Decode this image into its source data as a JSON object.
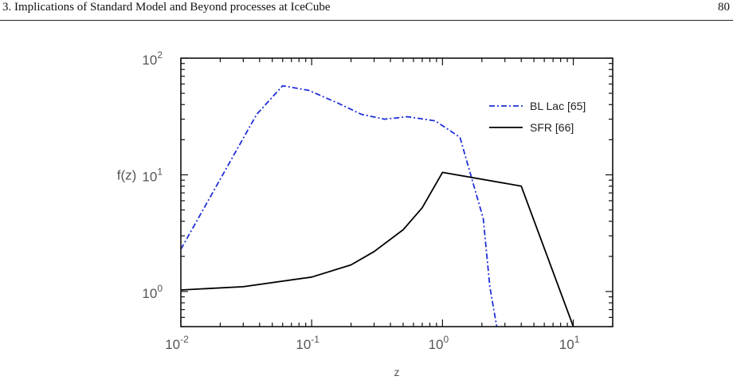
{
  "header": {
    "title": "3. Implications of Standard Model and Beyond processes at IceCube",
    "page_number": "80"
  },
  "colors": {
    "bl_lac": "#1f2fd8",
    "sfr": "#000000",
    "axis": "#111111",
    "tick_text": "#555555"
  },
  "chart_data": {
    "type": "line",
    "xlabel": "z",
    "ylabel": "f(z)",
    "xscale": "log",
    "yscale": "log",
    "xlim": [
      0.01,
      20
    ],
    "ylim": [
      0.5,
      100
    ],
    "x_ticks": [
      {
        "value": 0.01,
        "base": "10",
        "exp": "-2"
      },
      {
        "value": 0.1,
        "base": "10",
        "exp": "-1"
      },
      {
        "value": 1,
        "base": "10",
        "exp": "0"
      },
      {
        "value": 10,
        "base": "10",
        "exp": "1"
      }
    ],
    "y_ticks": [
      {
        "value": 1,
        "base": "10",
        "exp": "0"
      },
      {
        "value": 10,
        "base": "10",
        "exp": "1"
      },
      {
        "value": 100,
        "base": "10",
        "exp": "2"
      }
    ],
    "legend_position": "top-right",
    "series": [
      {
        "name": "BL Lac [65]",
        "style": "dash-dot",
        "color": "#1f2fd8",
        "x": [
          0.01,
          0.038,
          0.06,
          0.095,
          0.16,
          0.24,
          0.36,
          0.54,
          0.88,
          1.36,
          2.05,
          2.3,
          2.6
        ],
        "y": [
          2.3,
          33,
          58,
          53,
          41,
          33,
          30,
          31.5,
          29,
          21,
          4.2,
          1.1,
          0.5
        ]
      },
      {
        "name": "SFR [66]",
        "style": "solid",
        "color": "#000000",
        "x": [
          0.01,
          0.03,
          0.1,
          0.2,
          0.3,
          0.5,
          0.7,
          1.0,
          4.0,
          10.0
        ],
        "y": [
          1.03,
          1.1,
          1.33,
          1.69,
          2.2,
          3.38,
          5.22,
          10.5,
          8.0,
          0.5
        ]
      }
    ]
  }
}
